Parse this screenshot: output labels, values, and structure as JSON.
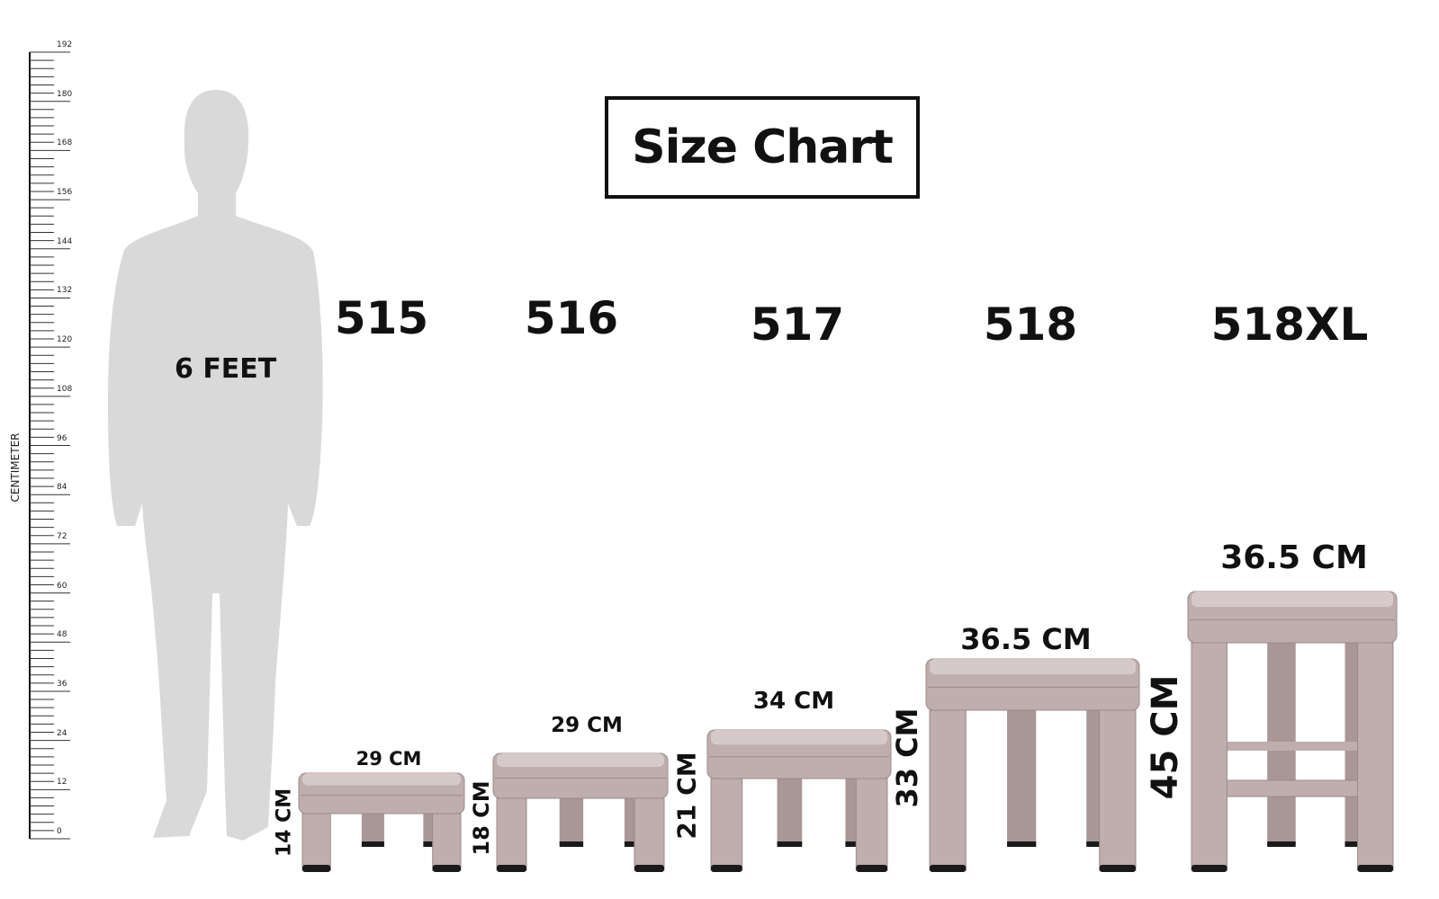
{
  "title": "Size Chart",
  "ruler": {
    "label": "CENTIMETER",
    "ticks": [
      "192",
      "180",
      "168",
      "156",
      "144",
      "132",
      "120",
      "108",
      "96",
      "84",
      "72",
      "60",
      "48",
      "36",
      "24",
      "12",
      "0"
    ]
  },
  "person": {
    "label": "6 FEET"
  },
  "colors": {
    "stool": "#bfaeae",
    "stool_top": "#d6c9ca",
    "feet": "#1a1a1a",
    "person": "#d9d9d9"
  },
  "models": [
    {
      "name": "515",
      "width": "29 CM",
      "height": "14 CM"
    },
    {
      "name": "516",
      "width": "29 CM",
      "height": "18 CM"
    },
    {
      "name": "517",
      "width": "34 CM",
      "height": "21 CM"
    },
    {
      "name": "518",
      "width": "36.5 CM",
      "height": "33 CM"
    },
    {
      "name": "518XL",
      "width": "36.5 CM",
      "height": "45 CM"
    }
  ]
}
